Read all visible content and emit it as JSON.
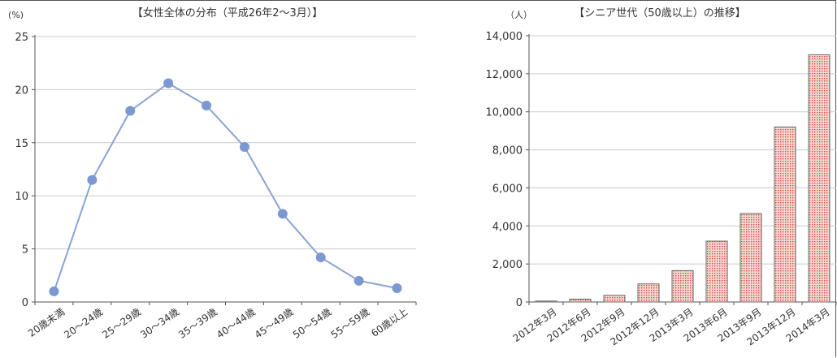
{
  "colors": {
    "line": "#8aa3d6",
    "marker": "#7c98d2",
    "bar_fill": "#f3d9d5",
    "bar_hatch": "#d9493a",
    "bar_stroke": "#6b6b6b",
    "grid": "#cccccc",
    "axis": "#555555"
  },
  "chart_data": [
    {
      "type": "line",
      "title": "【女性全体の分布（平成26年2～3月）】",
      "ylabel": "(%)",
      "xlabel": "",
      "categories": [
        "20歳未満",
        "20～24歳",
        "25～29歳",
        "30～34歳",
        "35～39歳",
        "40～44歳",
        "45～49歳",
        "50～54歳",
        "55～59歳",
        "60歳以上"
      ],
      "values": [
        1.0,
        11.5,
        18.0,
        20.6,
        18.5,
        14.6,
        8.3,
        4.2,
        2.0,
        1.3
      ],
      "ylim": [
        0,
        25
      ],
      "yticks": [
        0,
        5,
        10,
        15,
        20,
        25
      ],
      "ytick_labels": [
        "0",
        "5",
        "10",
        "15",
        "20",
        "25"
      ],
      "grid": true,
      "legend": "none"
    },
    {
      "type": "bar",
      "title": "【シニア世代（50歳以上）の推移】",
      "ylabel": "（人）",
      "xlabel": "",
      "categories": [
        "2012年3月",
        "2012年6月",
        "2012年9月",
        "2012年12月",
        "2013年3月",
        "2013年6月",
        "2013年9月",
        "2013年12月",
        "2014年3月"
      ],
      "values": [
        50,
        150,
        350,
        950,
        1650,
        3200,
        4650,
        9200,
        13000
      ],
      "ylim": [
        0,
        14000
      ],
      "yticks": [
        0,
        2000,
        4000,
        6000,
        8000,
        10000,
        12000,
        14000
      ],
      "ytick_labels": [
        "0",
        "2,000",
        "4,000",
        "6,000",
        "8,000",
        "10,000",
        "12,000",
        "14,000"
      ],
      "grid": true,
      "legend": "none"
    }
  ]
}
